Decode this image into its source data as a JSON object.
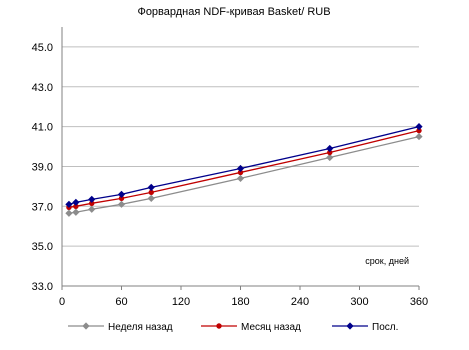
{
  "chart_data": {
    "type": "line",
    "title": "Форвардная NDF-кривая Basket/ RUB",
    "xlabel": "",
    "ylabel": "",
    "annotation": "срок, дней",
    "xlim": [
      0,
      360
    ],
    "ylim": [
      33.0,
      46.0
    ],
    "x_ticks": [
      0,
      60,
      120,
      180,
      240,
      300,
      360
    ],
    "y_ticks": [
      33.0,
      35.0,
      37.0,
      39.0,
      41.0,
      43.0,
      45.0
    ],
    "x_tick_labels": [
      "0",
      "60",
      "120",
      "180",
      "240",
      "300",
      "360"
    ],
    "y_tick_labels": [
      "33.0",
      "35.0",
      "37.0",
      "39.0",
      "41.0",
      "43.0",
      "45.0"
    ],
    "grid": "horizontal",
    "legend_position": "bottom",
    "x": [
      7,
      14,
      30,
      60,
      90,
      180,
      270,
      360
    ],
    "series": [
      {
        "name": "Неделя назад",
        "color": "#8c8c8c",
        "marker": "diamond",
        "values": [
          36.65,
          36.7,
          36.85,
          37.1,
          37.4,
          38.4,
          39.45,
          40.5
        ]
      },
      {
        "name": "Месяц назад",
        "color": "#c00000",
        "marker": "circle",
        "values": [
          36.95,
          37.0,
          37.15,
          37.4,
          37.7,
          38.7,
          39.7,
          40.8
        ]
      },
      {
        "name": "Посл.",
        "color": "#00008b",
        "marker": "diamond",
        "values": [
          37.1,
          37.2,
          37.35,
          37.6,
          37.95,
          38.9,
          39.9,
          41.0
        ]
      }
    ]
  }
}
